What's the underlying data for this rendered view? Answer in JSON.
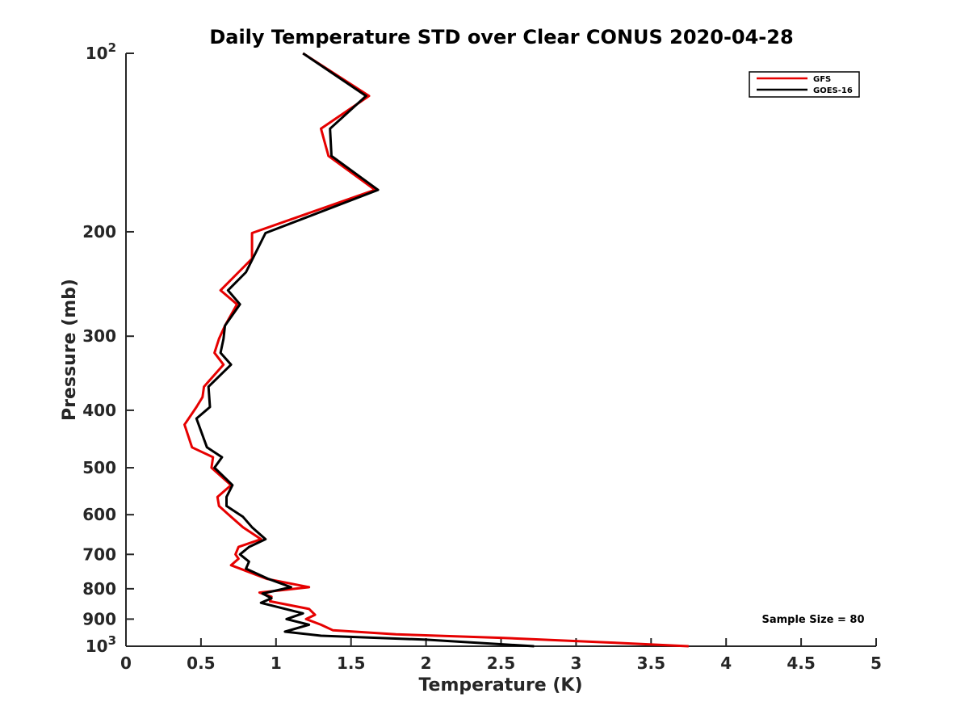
{
  "chart_data": {
    "type": "line",
    "title": "Daily Temperature STD over Clear CONUS 2020-04-28",
    "xlabel": "Temperature (K)",
    "ylabel": "Pressure (mb)",
    "xlim": [
      0,
      5
    ],
    "ylim": [
      100,
      1000
    ],
    "y_scale": "log",
    "y_reversed": true,
    "grid": false,
    "legend_position": "top-right",
    "x_ticks": [
      "0",
      "0.5",
      "1",
      "1.5",
      "2",
      "2.5",
      "3",
      "3.5",
      "4",
      "4.5",
      "5"
    ],
    "y_ticks": [
      {
        "value": 100,
        "base": "10",
        "exp": "2"
      },
      {
        "value": 200,
        "base": "200",
        "exp": ""
      },
      {
        "value": 300,
        "base": "300",
        "exp": ""
      },
      {
        "value": 400,
        "base": "400",
        "exp": ""
      },
      {
        "value": 500,
        "base": "500",
        "exp": ""
      },
      {
        "value": 600,
        "base": "600",
        "exp": ""
      },
      {
        "value": 700,
        "base": "700",
        "exp": ""
      },
      {
        "value": 800,
        "base": "800",
        "exp": ""
      },
      {
        "value": 900,
        "base": "900",
        "exp": ""
      },
      {
        "value": 1000,
        "base": "10",
        "exp": "3"
      }
    ],
    "series": [
      {
        "name": "GFS",
        "color": "#e60000",
        "points": [
          [
            1.18,
            100
          ],
          [
            1.62,
            118
          ],
          [
            1.3,
            134
          ],
          [
            1.35,
            149
          ],
          [
            1.66,
            170
          ],
          [
            0.84,
            201
          ],
          [
            0.84,
            222
          ],
          [
            0.75,
            234
          ],
          [
            0.63,
            251
          ],
          [
            0.74,
            265
          ],
          [
            0.66,
            288
          ],
          [
            0.62,
            303
          ],
          [
            0.59,
            320
          ],
          [
            0.65,
            335
          ],
          [
            0.52,
            365
          ],
          [
            0.51,
            380
          ],
          [
            0.47,
            395
          ],
          [
            0.39,
            423
          ],
          [
            0.44,
            462
          ],
          [
            0.58,
            480
          ],
          [
            0.57,
            500
          ],
          [
            0.7,
            535
          ],
          [
            0.61,
            560
          ],
          [
            0.62,
            580
          ],
          [
            0.7,
            605
          ],
          [
            0.78,
            630
          ],
          [
            0.9,
            660
          ],
          [
            0.75,
            680
          ],
          [
            0.73,
            700
          ],
          [
            0.75,
            712
          ],
          [
            0.7,
            730
          ],
          [
            0.94,
            770
          ],
          [
            1.22,
            795
          ],
          [
            0.89,
            812
          ],
          [
            0.97,
            825
          ],
          [
            0.96,
            840
          ],
          [
            1.22,
            865
          ],
          [
            1.26,
            885
          ],
          [
            1.2,
            900
          ],
          [
            1.3,
            920
          ],
          [
            1.38,
            940
          ],
          [
            1.8,
            955
          ],
          [
            2.5,
            968
          ],
          [
            3.2,
            985
          ],
          [
            3.75,
            1000
          ]
        ]
      },
      {
        "name": "GOES-16",
        "color": "#000000",
        "points": [
          [
            1.18,
            100
          ],
          [
            1.6,
            118
          ],
          [
            1.36,
            134
          ],
          [
            1.37,
            149
          ],
          [
            1.68,
            170
          ],
          [
            0.93,
            201
          ],
          [
            0.8,
            234
          ],
          [
            0.68,
            251
          ],
          [
            0.76,
            265
          ],
          [
            0.66,
            288
          ],
          [
            0.65,
            303
          ],
          [
            0.63,
            320
          ],
          [
            0.7,
            335
          ],
          [
            0.55,
            365
          ],
          [
            0.56,
            395
          ],
          [
            0.47,
            413
          ],
          [
            0.54,
            462
          ],
          [
            0.64,
            480
          ],
          [
            0.59,
            500
          ],
          [
            0.71,
            535
          ],
          [
            0.67,
            560
          ],
          [
            0.67,
            580
          ],
          [
            0.78,
            605
          ],
          [
            0.84,
            630
          ],
          [
            0.93,
            660
          ],
          [
            0.82,
            680
          ],
          [
            0.76,
            700
          ],
          [
            0.82,
            720
          ],
          [
            0.8,
            740
          ],
          [
            0.95,
            770
          ],
          [
            1.1,
            795
          ],
          [
            0.91,
            815
          ],
          [
            0.97,
            830
          ],
          [
            0.9,
            845
          ],
          [
            1.18,
            880
          ],
          [
            1.07,
            900
          ],
          [
            1.22,
            920
          ],
          [
            1.06,
            945
          ],
          [
            1.3,
            960
          ],
          [
            2.0,
            975
          ],
          [
            2.72,
            1000
          ]
        ]
      }
    ],
    "annotation": "Sample Size = 80"
  }
}
